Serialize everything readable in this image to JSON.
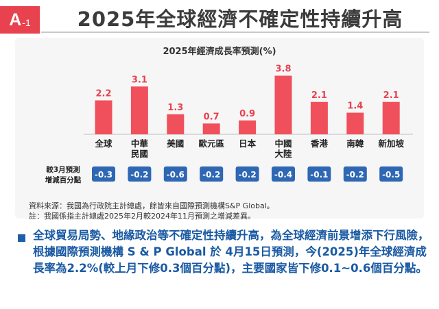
{
  "header": {
    "badge_letter": "A",
    "badge_sub": "-1",
    "title": "2025年全球經濟不確定性持續升高"
  },
  "chart_data": {
    "type": "bar",
    "title": "2025年經濟成長率預測(%)",
    "categories": [
      "全球",
      "中華民國",
      "美國",
      "歐元區",
      "日本",
      "中國大陸",
      "香港",
      "南韓",
      "新加坡"
    ],
    "category_lines": [
      [
        "全球"
      ],
      [
        "中華",
        "民國"
      ],
      [
        "美國"
      ],
      [
        "歐元區"
      ],
      [
        "日本"
      ],
      [
        "中國",
        "大陸"
      ],
      [
        "香港"
      ],
      [
        "南韓"
      ],
      [
        "新加坡"
      ]
    ],
    "values": [
      2.2,
      3.1,
      1.3,
      0.7,
      0.9,
      3.8,
      2.1,
      1.4,
      2.1
    ],
    "value_labels": [
      "2.2",
      "3.1",
      "1.3",
      "0.7",
      "0.9",
      "3.8",
      "2.1",
      "1.4",
      "2.1"
    ],
    "ylim": [
      0,
      4
    ],
    "grid": false,
    "bar_color": "#f0505c",
    "label_color": "#e8424f",
    "revision_label_lines": [
      "較3月預測",
      "增減百分點"
    ],
    "revisions": [
      "-0.3",
      "-0.2",
      "-0.6",
      "-0.2",
      "-0.2",
      "-0.4",
      "-0.1",
      "-0.2",
      "-0.5"
    ],
    "revision_badge_color": "#2e67b3"
  },
  "notes": {
    "source": "資料來源：我國為行政院主計總處，餘皆來自國際預測機構S&P Global。",
    "footnote": "註：我國係指主計總處2025年2月較2024年11月預測之增減差異。"
  },
  "summary": {
    "text": "全球貿易局勢、地緣政治等不確定性持續升高，為全球經濟前景增添下行風險，根據國際預測機構 S & P Global 於 4月15日預測，今(2025)年全球經濟成長率為2.2%(較上月下修0.3個百分點)，主要國家皆下修0.1~0.6個百分點。"
  },
  "colors": {
    "accent": "#e8424f",
    "summary_text": "#1a5aa3"
  }
}
